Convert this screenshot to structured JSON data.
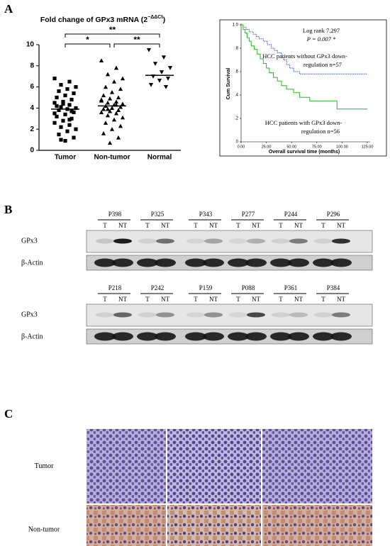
{
  "panel_labels": [
    "A",
    "B",
    "C"
  ],
  "chart_data": [
    {
      "type": "dotplot",
      "title": "Fold change of GPx3 mRNA (2",
      "title_superscript": "−ΔΔCt",
      "title_end": ")",
      "categories": [
        "Tumor",
        "Non-tumor",
        "Normal"
      ],
      "groups": [
        [
          6.8,
          6.5,
          6.2,
          6.0,
          5.8,
          5.6,
          5.4,
          5.2,
          5.0,
          4.8,
          4.6,
          4.5,
          4.3,
          4.1,
          4.0,
          3.9,
          3.8,
          3.6,
          3.4,
          3.2,
          3.0,
          2.8,
          2.6,
          2.4,
          2.2,
          2.0,
          1.8,
          1.5,
          1.2,
          0.9,
          4.2,
          3.7,
          4.4,
          3.5,
          2.9,
          1.0
        ],
        [
          8.5,
          7.8,
          7.2,
          6.8,
          6.5,
          6.0,
          5.8,
          5.5,
          5.2,
          5.0,
          4.9,
          4.7,
          4.6,
          4.5,
          4.4,
          4.3,
          4.2,
          4.1,
          4.0,
          3.9,
          3.8,
          3.7,
          3.6,
          3.5,
          3.3,
          3.1,
          2.9,
          2.6,
          2.3,
          2.0,
          1.6,
          1.2,
          0.7,
          4.8,
          4.3,
          3.9
        ],
        [
          9.5,
          8.8,
          8.2,
          7.8,
          7.4,
          7.0,
          6.8,
          6.6,
          6.2,
          6.0
        ]
      ],
      "means": [
        3.9,
        4.2,
        7.1
      ],
      "markers": [
        "square",
        "triangle",
        "triangle-down"
      ],
      "color": "#000000",
      "ylim": [
        0,
        10
      ],
      "yticks": [
        0,
        2,
        4,
        6,
        8,
        10
      ],
      "significance": [
        "**",
        "*",
        "**"
      ]
    },
    {
      "type": "survival",
      "xlabel": "Overall survival time (months)",
      "ylabel": "Cum Survival",
      "xlim": [
        0,
        125
      ],
      "xticks": [
        {
          "value": 0,
          "label": "0.00"
        },
        {
          "value": 25,
          "label": "25.00"
        },
        {
          "value": 50,
          "label": "50.00"
        },
        {
          "value": 75,
          "label": "75.00"
        },
        {
          "value": 100,
          "label": "100.00"
        },
        {
          "value": 125,
          "label": "125.00"
        }
      ],
      "ylim": [
        0,
        1
      ],
      "yticks": [
        0,
        {
          "value": 0.2,
          "label": ".2"
        },
        {
          "value": 0.4,
          "label": ".4"
        },
        {
          "value": 0.6,
          "label": ".6"
        },
        {
          "value": 0.8,
          "label": ".8"
        },
        {
          "value": 1,
          "label": "1.0"
        }
      ],
      "annotations": [
        "Log rank 7.297",
        "P = 0.007 *"
      ],
      "series": [
        {
          "label": [
            "HCC patients without GPx3 down-",
            "regulation n=57"
          ],
          "color": "#3355cc",
          "dashed": true,
          "x": [
            0,
            2,
            2,
            5,
            5,
            8,
            8,
            12,
            12,
            15,
            15,
            18,
            18,
            22,
            22,
            26,
            26,
            30,
            30,
            33,
            33,
            36,
            36,
            40,
            40,
            42,
            42,
            45,
            45,
            48,
            48,
            52,
            52,
            58,
            58,
            125
          ],
          "values": [
            1,
            1,
            0.98,
            0.98,
            0.96,
            0.96,
            0.94,
            0.94,
            0.92,
            0.92,
            0.9,
            0.9,
            0.88,
            0.88,
            0.86,
            0.86,
            0.83,
            0.83,
            0.8,
            0.8,
            0.78,
            0.78,
            0.76,
            0.76,
            0.72,
            0.72,
            0.7,
            0.7,
            0.66,
            0.66,
            0.63,
            0.63,
            0.6,
            0.6,
            0.58,
            0.58
          ]
        },
        {
          "label": [
            "HCC patients with GPx3 down-",
            "regulation n=56"
          ],
          "color": "#22bb22",
          "dashed": false,
          "x": [
            0,
            2,
            2,
            4,
            4,
            6,
            6,
            8,
            8,
            10,
            10,
            13,
            13,
            16,
            16,
            19,
            19,
            22,
            22,
            25,
            25,
            28,
            28,
            32,
            32,
            36,
            36,
            40,
            40,
            45,
            45,
            52,
            52,
            58,
            58,
            68,
            68,
            95,
            95,
            125
          ],
          "values": [
            1,
            1,
            0.96,
            0.96,
            0.93,
            0.93,
            0.89,
            0.89,
            0.86,
            0.86,
            0.82,
            0.82,
            0.79,
            0.79,
            0.75,
            0.75,
            0.71,
            0.71,
            0.67,
            0.67,
            0.63,
            0.63,
            0.59,
            0.59,
            0.55,
            0.55,
            0.52,
            0.52,
            0.48,
            0.48,
            0.45,
            0.45,
            0.42,
            0.42,
            0.38,
            0.38,
            0.35,
            0.35,
            0.28,
            0.28
          ]
        }
      ]
    }
  ],
  "blots": {
    "lane_labels": [
      "T",
      "NT"
    ],
    "band_labels": [
      "GPx3",
      "β-Actin"
    ],
    "rows": [
      {
        "samples": [
          "P398",
          "P325",
          "P343",
          "P277",
          "P244",
          "P296"
        ]
      },
      {
        "samples": [
          "P218",
          "P242",
          "P159",
          "P088",
          "P361",
          "P384"
        ]
      }
    ]
  },
  "ihc": {
    "rows": [
      "Tumor",
      "Non-tumor"
    ]
  }
}
